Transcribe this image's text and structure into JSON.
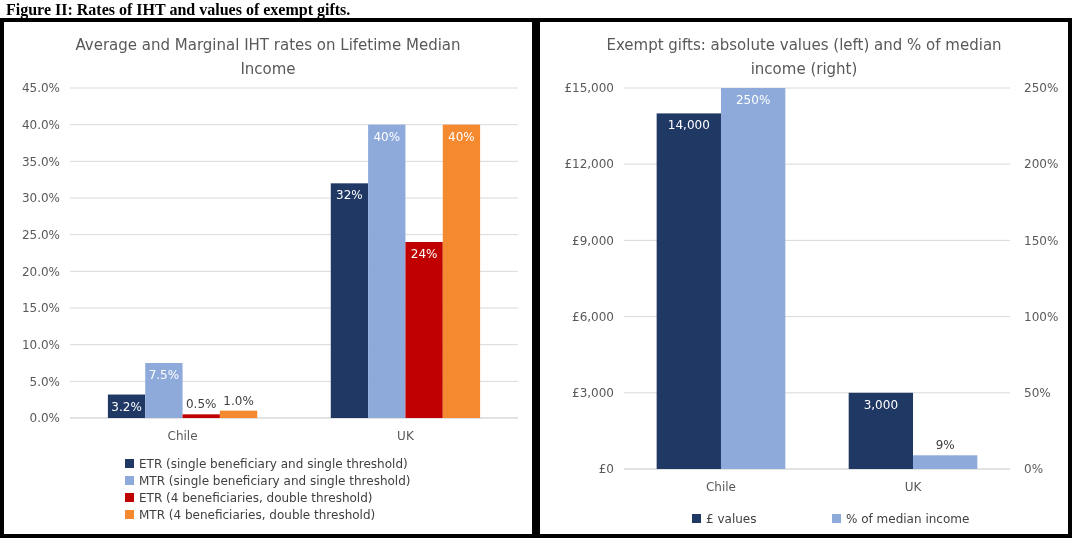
{
  "chart_data": [
    {
      "type": "bar",
      "title": "Average and Marginal IHT rates on Lifetime Median Income",
      "annotations": [
        "Figure II: Rates of IHT and values of exempt gifts."
      ],
      "categories": [
        "Chile",
        "UK"
      ],
      "series": [
        {
          "name": "ETR (single beneficiary and single threshold)",
          "color": "#1f3864",
          "values": [
            3.2,
            32
          ],
          "value_labels": [
            "3.2%",
            "32%"
          ]
        },
        {
          "name": "MTR (single beneficiary and single threshold)",
          "color": "#8eaadb",
          "values": [
            7.5,
            40
          ],
          "value_labels": [
            "7.5%",
            "40%"
          ]
        },
        {
          "name": "ETR (4 beneficiaries, double threshold)",
          "color": "#c00000",
          "values": [
            0.5,
            24
          ],
          "value_labels": [
            "0.5%",
            "24%"
          ]
        },
        {
          "name": "MTR (4 beneficiaries, double threshold)",
          "color": "#f4892f",
          "values": [
            1.0,
            40
          ],
          "value_labels": [
            "1.0%",
            "40%"
          ]
        }
      ],
      "ylim": [
        0,
        45
      ],
      "yticks": [
        {
          "value": 0,
          "label": "0.0%"
        },
        {
          "value": 5,
          "label": "5.0%"
        },
        {
          "value": 10,
          "label": "10.0%"
        },
        {
          "value": 15,
          "label": "15.0%"
        },
        {
          "value": 20,
          "label": "20.0%"
        },
        {
          "value": 25,
          "label": "25.0%"
        },
        {
          "value": 30,
          "label": "30.0%"
        },
        {
          "value": 35,
          "label": "35.0%"
        },
        {
          "value": 40,
          "label": "40.0%"
        },
        {
          "value": 45,
          "label": "45.0%"
        }
      ],
      "grid": "y",
      "legend": "bottom"
    },
    {
      "type": "bar",
      "title": "Exempt gifts: absolute values (left) and % of median income (right)",
      "categories": [
        "Chile",
        "UK"
      ],
      "series": [
        {
          "name": "£ values",
          "color": "#1f3864",
          "values": [
            14000,
            3000
          ],
          "value_labels": [
            "14,000",
            "3,000"
          ]
        },
        {
          "name": "% of median income",
          "color": "#8eaadb",
          "values": [
            250,
            9
          ],
          "value_labels": [
            "250%",
            "9%"
          ],
          "axis": "y2"
        }
      ],
      "ylim": [
        0,
        15000
      ],
      "yticks": [
        {
          "value": 0,
          "label": "£0"
        },
        {
          "value": 3000,
          "label": "£3,000"
        },
        {
          "value": 6000,
          "label": "£6,000"
        },
        {
          "value": 9000,
          "label": "£9,000"
        },
        {
          "value": 12000,
          "label": "£12,000"
        },
        {
          "value": 15000,
          "label": "£15,000"
        }
      ],
      "y2lim": [
        0,
        250
      ],
      "y2ticks": [
        {
          "value": 0,
          "label": "0%"
        },
        {
          "value": 50,
          "label": "50%"
        },
        {
          "value": 100,
          "label": "100%"
        },
        {
          "value": 150,
          "label": "150%"
        },
        {
          "value": 200,
          "label": "200%"
        },
        {
          "value": 250,
          "label": "250%"
        }
      ],
      "grid": "y",
      "legend": "bottom"
    }
  ]
}
